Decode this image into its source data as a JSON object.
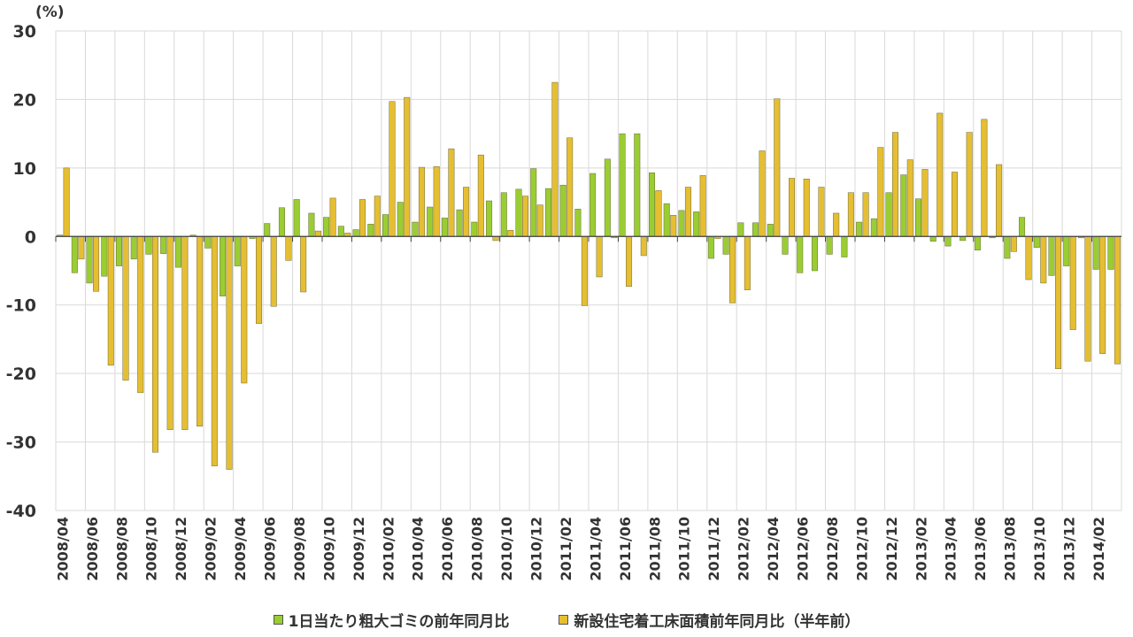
{
  "chart_data": {
    "type": "bar",
    "unit_label": "(%)",
    "ylim": [
      -40,
      30
    ],
    "yticks": [
      -40,
      -30,
      -20,
      -10,
      0,
      10,
      20,
      30
    ],
    "grid": true,
    "legend_position": "bottom",
    "categories": [
      "2008/04",
      "2008/05",
      "2008/06",
      "2008/07",
      "2008/08",
      "2008/09",
      "2008/10",
      "2008/11",
      "2008/12",
      "2009/01",
      "2009/02",
      "2009/03",
      "2009/04",
      "2009/05",
      "2009/06",
      "2009/07",
      "2009/08",
      "2009/09",
      "2009/10",
      "2009/11",
      "2009/12",
      "2010/01",
      "2010/02",
      "2010/03",
      "2010/04",
      "2010/05",
      "2010/06",
      "2010/07",
      "2010/08",
      "2010/09",
      "2010/10",
      "2010/11",
      "2010/12",
      "2011/01",
      "2011/02",
      "2011/03",
      "2011/04",
      "2011/05",
      "2011/06",
      "2011/07",
      "2011/08",
      "2011/09",
      "2011/10",
      "2011/11",
      "2011/12",
      "2012/01",
      "2012/02",
      "2012/03",
      "2012/04",
      "2012/05",
      "2012/06",
      "2012/07",
      "2012/08",
      "2012/09",
      "2012/10",
      "2012/11",
      "2012/12",
      "2013/01",
      "2013/02",
      "2013/03",
      "2013/04",
      "2013/05",
      "2013/06",
      "2013/07",
      "2013/08",
      "2013/09",
      "2013/10",
      "2013/11",
      "2013/12",
      "2014/01",
      "2014/02",
      "2014/03"
    ],
    "xtick_labels": [
      "2008/04",
      "2008/06",
      "2008/08",
      "2008/10",
      "2008/12",
      "2009/02",
      "2009/04",
      "2009/06",
      "2009/08",
      "2009/10",
      "2009/12",
      "2010/02",
      "2010/04",
      "2010/06",
      "2010/08",
      "2010/10",
      "2010/12",
      "2011/02",
      "2011/04",
      "2011/06",
      "2011/08",
      "2011/10",
      "2011/12",
      "2012/02",
      "2012/04",
      "2012/06",
      "2012/08",
      "2012/10",
      "2012/12",
      "2013/02",
      "2013/04",
      "2013/06",
      "2013/08",
      "2013/10",
      "2013/12",
      "2014/02"
    ],
    "series": [
      {
        "name": "1日当たり粗大ゴミの前年同月比",
        "color": "#9acd32",
        "values": [
          0.2,
          -5.3,
          -6.8,
          -5.8,
          -4.3,
          -3.3,
          -2.6,
          -2.5,
          -4.5,
          0.2,
          -1.7,
          -8.7,
          -4.3,
          -0.3,
          1.9,
          4.2,
          5.4,
          3.4,
          2.8,
          1.5,
          1.0,
          1.8,
          3.2,
          5.0,
          2.1,
          4.3,
          2.7,
          3.9,
          2.1,
          5.2,
          6.4,
          6.9,
          9.9,
          7.0,
          7.5,
          4.0,
          9.2,
          11.3,
          15.0,
          15.0,
          9.3,
          4.8,
          3.8,
          3.6,
          -3.2,
          -2.6,
          2.0,
          2.0,
          1.8,
          -2.6,
          -5.3,
          -5.0,
          -2.6,
          -3.0,
          2.1,
          2.6,
          6.4,
          9.0,
          5.5,
          -0.7,
          -1.4,
          -0.6,
          -2.0,
          -0.2,
          -3.2,
          2.8,
          -1.6,
          -5.7,
          -4.3,
          -0.2,
          -4.8,
          -4.8
        ]
      },
      {
        "name": "新設住宅着工床面積前年同月比（半年前）",
        "color": "#e6be32",
        "values": [
          10.0,
          -3.3,
          -8.0,
          -18.8,
          -21.0,
          -22.8,
          -31.5,
          -28.2,
          -28.2,
          -27.7,
          -33.5,
          -34.0,
          -21.4,
          -12.7,
          -10.2,
          -3.5,
          -8.1,
          0.8,
          5.6,
          0.5,
          5.4,
          5.9,
          19.7,
          20.3,
          10.1,
          10.2,
          12.8,
          7.2,
          11.9,
          -0.6,
          0.9,
          5.9,
          4.6,
          22.5,
          14.4,
          -10.1,
          -5.9,
          -0.2,
          -7.3,
          -2.8,
          6.7,
          3.1,
          7.2,
          8.9,
          -0.3,
          -9.7,
          -7.8,
          12.5,
          20.1,
          8.5,
          8.4,
          7.2,
          3.4,
          6.4,
          6.4,
          13.0,
          15.2,
          11.2,
          9.8,
          18.0,
          9.4,
          15.2,
          17.1,
          10.5,
          -2.2,
          -6.3,
          -6.8,
          -19.3,
          -13.6,
          -18.2,
          -17.1,
          -18.6
        ]
      }
    ]
  }
}
